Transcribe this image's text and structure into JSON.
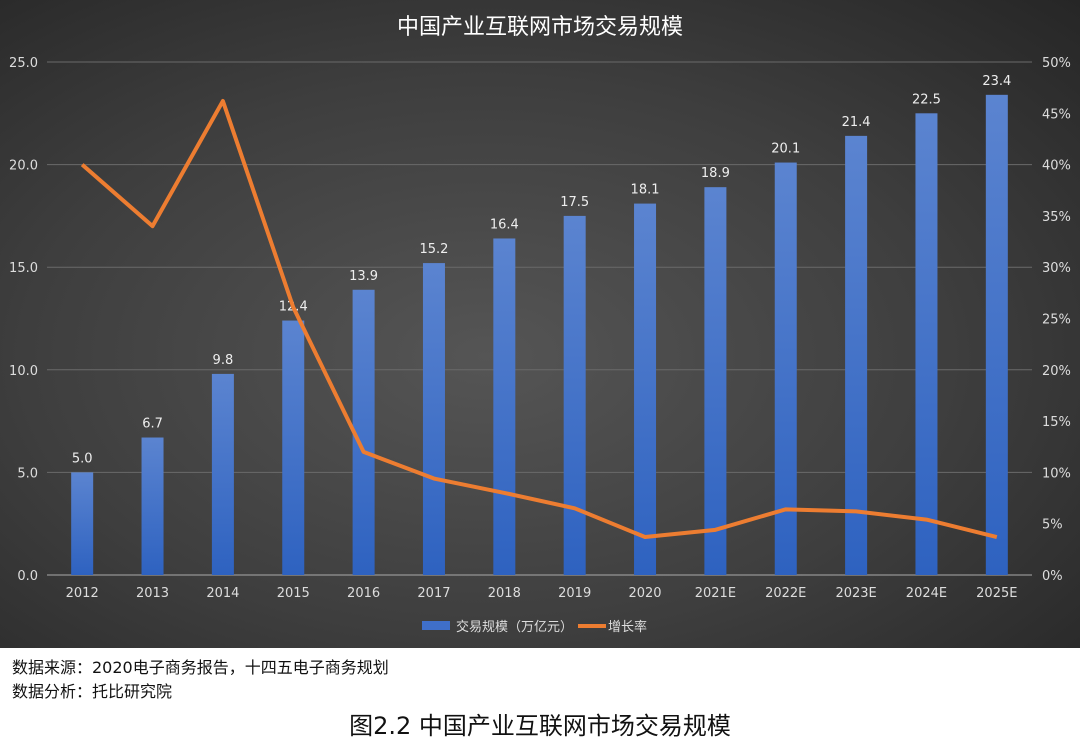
{
  "chart_data": {
    "type": "bar+line",
    "title": "中国产业互联网市场交易规模",
    "categories": [
      "2012",
      "2013",
      "2014",
      "2015",
      "2016",
      "2017",
      "2018",
      "2019",
      "2020",
      "2021E",
      "2022E",
      "2023E",
      "2024E",
      "2025E"
    ],
    "series": [
      {
        "name": "交易规模（万亿元）",
        "type": "bar",
        "axis": "left",
        "color": "#4472c4",
        "values": [
          5.0,
          6.7,
          9.8,
          12.4,
          13.9,
          15.2,
          16.4,
          17.5,
          18.1,
          18.9,
          20.1,
          21.4,
          22.5,
          23.4
        ]
      },
      {
        "name": "增长率",
        "type": "line",
        "axis": "right",
        "color": "#ed7d31",
        "values": [
          40.0,
          34.0,
          46.2,
          26.1,
          12.0,
          9.4,
          8.0,
          6.5,
          3.7,
          4.4,
          6.4,
          6.2,
          5.4,
          3.7
        ]
      }
    ],
    "y_left": {
      "range": [
        0,
        25
      ],
      "ticks": [
        "0.0",
        "5.0",
        "10.0",
        "15.0",
        "20.0",
        "25.0"
      ]
    },
    "y_right": {
      "range": [
        0,
        50
      ],
      "unit": "%",
      "ticks": [
        "0%",
        "5%",
        "10%",
        "15%",
        "20%",
        "25%",
        "30%",
        "35%",
        "40%",
        "45%",
        "50%"
      ]
    },
    "grid": true,
    "legend": "bottom"
  },
  "source": "数据来源：2020电子商务报告，十四五电子商务规划",
  "analysis": "数据分析：托比研究院",
  "caption": "图2.2 中国产业互联网市场交易规模"
}
